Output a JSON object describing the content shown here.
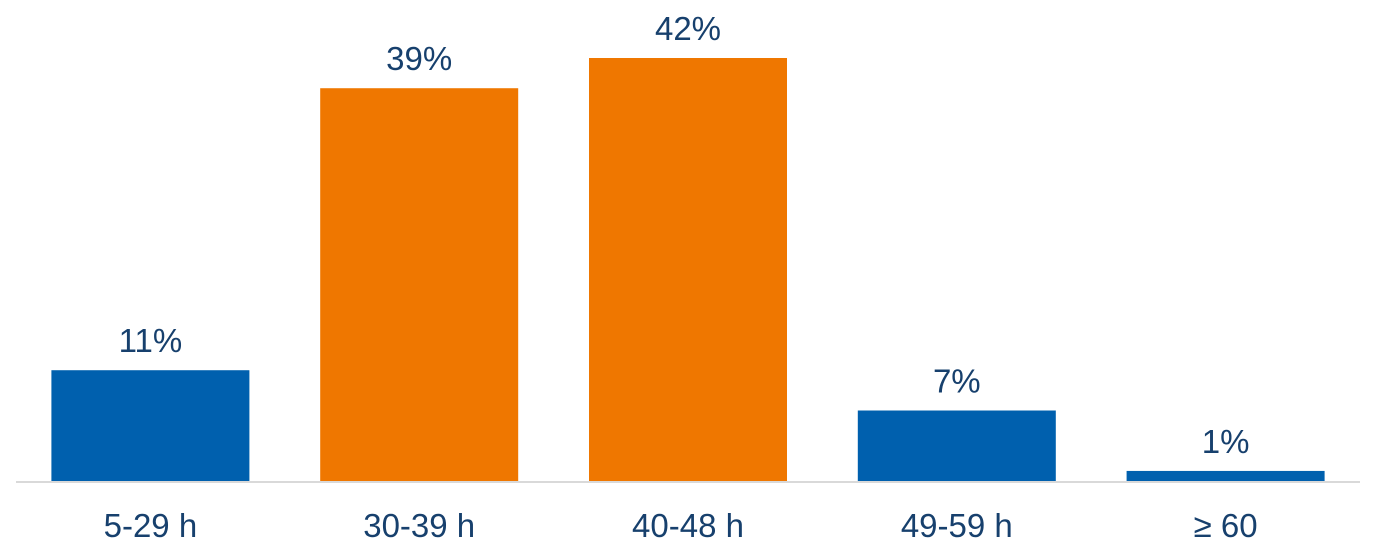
{
  "chart_data": {
    "type": "bar",
    "categories": [
      "5-29 h",
      "30-39 h",
      "40-48 h",
      "49-59 h",
      "≥ 60"
    ],
    "values": [
      11,
      39,
      42,
      7,
      1
    ],
    "data_labels": [
      "11%",
      "39%",
      "42%",
      "7%",
      "1%"
    ],
    "bar_colors": [
      "#0060ae",
      "#ef7700",
      "#ef7700",
      "#0060ae",
      "#0060ae"
    ],
    "title": "",
    "xlabel": "",
    "ylabel": "",
    "ylim": [
      0,
      42
    ],
    "grid": false,
    "legend": "none"
  },
  "colors": {
    "blue": "#0060ae",
    "orange": "#ef7700",
    "label_text": "#17406d",
    "axis_line": "#d9d9d9"
  }
}
